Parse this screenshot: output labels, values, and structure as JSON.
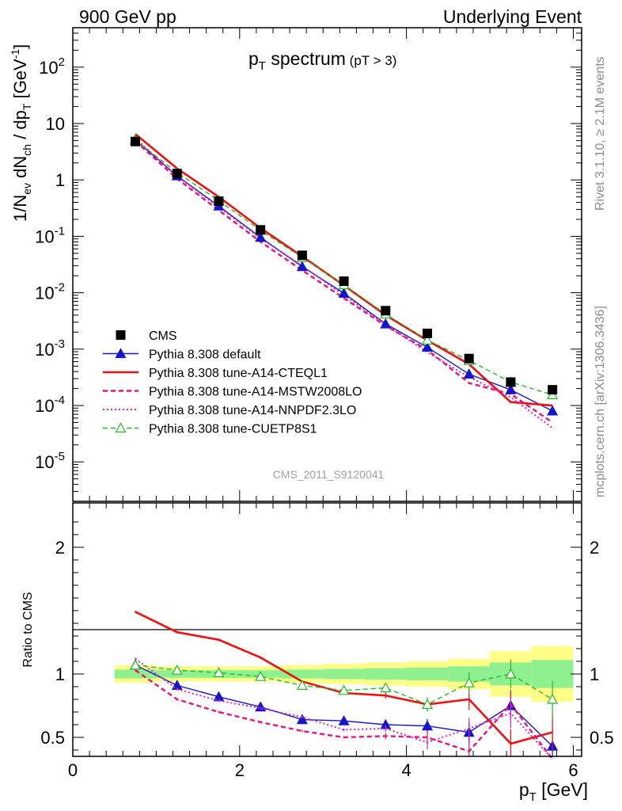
{
  "header": {
    "left": "900 GeV pp",
    "right": "Underlying Event"
  },
  "side_labels": {
    "rivet": "Rivet 3.1.10, ≥ 2.1M events",
    "mcplots": "mcplots.cern.ch [arXiv:1306.3436]"
  },
  "watermark": "CMS_2011_S9120041",
  "chart_data": [
    {
      "type": "line",
      "panel": "main",
      "title": "pT spectrum (pT > 3)",
      "xlabel": "pT [GeV]",
      "ylabel": "1/Nev dNch / dpT [GeV^-1]",
      "xlim": [
        0,
        6.1
      ],
      "ylim": [
        2e-06,
        500
      ],
      "yscale": "log",
      "ytick_labels": [
        "10^2",
        "10",
        "1",
        "10^-1",
        "10^-2",
        "10^-3",
        "10^-4",
        "10^-5"
      ],
      "x": [
        0.75,
        1.25,
        1.75,
        2.25,
        2.75,
        3.25,
        3.75,
        4.25,
        4.75,
        5.25,
        5.75
      ],
      "series": [
        {
          "name": "CMS",
          "style": "markers",
          "color": "#000000",
          "values": [
            4.8,
            1.3,
            0.42,
            0.13,
            0.046,
            0.016,
            0.0048,
            0.0019,
            0.00068,
            0.00026,
            0.00019
          ]
        },
        {
          "name": "Pythia 8.308 default",
          "style": "solid-triangle",
          "color": "#1515cc",
          "values": [
            5.1,
            1.18,
            0.345,
            0.096,
            0.029,
            0.0098,
            0.0028,
            0.00108,
            0.00036,
            0.00019,
            8e-05
          ]
        },
        {
          "name": "Pythia 8.308 tune-A14-CTEQL1",
          "style": "solid",
          "color": "#ee1111",
          "values": [
            6.5,
            1.6,
            0.5,
            0.14,
            0.044,
            0.0135,
            0.004,
            0.00143,
            0.00054,
            0.000115,
            0.0001
          ]
        },
        {
          "name": "Pythia 8.308 tune-A14-MSTW2008LO",
          "style": "dashed",
          "color": "#ee1177",
          "values": [
            4.9,
            1.05,
            0.29,
            0.08,
            0.025,
            0.008,
            0.0026,
            0.00097,
            0.00025,
            0.00016,
            5e-05
          ]
        },
        {
          "name": "Pythia 8.308 tune-A14-NNPDF2.3LO",
          "style": "dotted",
          "color": "#dd22cc",
          "values": [
            5.5,
            1.15,
            0.33,
            0.092,
            0.03,
            0.009,
            0.0027,
            0.00088,
            0.00032,
            0.00014,
            4e-05
          ]
        },
        {
          "name": "Pythia 8.308 tune-CUETP8S1",
          "style": "dashed-open-triangle",
          "color": "#22bb22",
          "values": [
            5.1,
            1.35,
            0.43,
            0.128,
            0.042,
            0.0138,
            0.0042,
            0.00145,
            0.00063,
            0.00026,
            0.000155
          ]
        }
      ]
    },
    {
      "type": "line",
      "panel": "ratio",
      "xlabel": "pT [GeV]",
      "ylabel": "Ratio to CMS",
      "xlim": [
        0,
        6.1
      ],
      "ylim": [
        0.35,
        2.35
      ],
      "xticks": [
        0,
        2,
        4,
        6
      ],
      "yticks": [
        0.5,
        1,
        2
      ],
      "x": [
        0.75,
        1.25,
        1.75,
        2.25,
        2.75,
        3.25,
        3.75,
        4.25,
        4.75,
        5.25,
        5.75
      ],
      "bands": {
        "edges": [
          0.5,
          1.0,
          1.5,
          2.0,
          2.5,
          3.0,
          3.5,
          4.0,
          4.5,
          5.0,
          5.5,
          6.0
        ],
        "yellow_halfwidth": [
          0.07,
          0.06,
          0.06,
          0.06,
          0.07,
          0.08,
          0.09,
          0.1,
          0.12,
          0.18,
          0.22
        ],
        "green_halfwidth": [
          0.035,
          0.03,
          0.03,
          0.03,
          0.035,
          0.04,
          0.045,
          0.05,
          0.06,
          0.09,
          0.11
        ]
      },
      "series": [
        {
          "name": "Pythia 8.308 default",
          "color": "#1515cc",
          "values": [
            1.07,
            0.91,
            0.82,
            0.74,
            0.64,
            0.63,
            0.6,
            0.59,
            0.54,
            0.75,
            0.43
          ]
        },
        {
          "name": "Pythia 8.308 tune-A14-CTEQL1",
          "color": "#ee1111",
          "values": [
            1.49,
            1.33,
            1.27,
            1.13,
            0.94,
            0.85,
            0.83,
            0.76,
            0.8,
            0.45,
            0.54
          ]
        },
        {
          "name": "Pythia 8.308 tune-A14-MSTW2008LO",
          "color": "#ee1177",
          "values": [
            1.03,
            0.8,
            0.7,
            0.62,
            0.55,
            0.5,
            0.51,
            0.5,
            0.39,
            0.76,
            0.25
          ]
        },
        {
          "name": "Pythia 8.308 tune-A14-NNPDF2.3LO",
          "color": "#dd22cc",
          "values": [
            1.12,
            0.88,
            0.79,
            0.73,
            0.66,
            0.56,
            0.57,
            0.46,
            0.57,
            0.69,
            0.2
          ]
        },
        {
          "name": "Pythia 8.308 tune-CUETP8S1",
          "color": "#22bb22",
          "values": [
            1.07,
            1.03,
            1.01,
            0.98,
            0.91,
            0.87,
            0.89,
            0.76,
            0.93,
            1.0,
            0.8
          ]
        }
      ]
    }
  ]
}
